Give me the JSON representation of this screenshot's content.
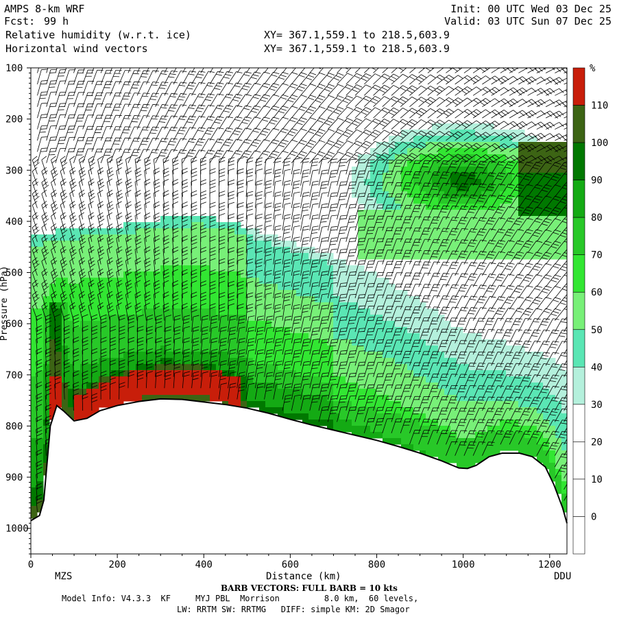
{
  "header": {
    "model": "AMPS 8-km WRF",
    "fcst_label": "Fcst:",
    "fcst_value": "99 h",
    "field1": "Relative humidity (w.r.t. ice)",
    "field2": "Horizontal wind vectors",
    "init": "Init: 00 UTC Wed 03 Dec 25",
    "valid": "Valid: 03 UTC Sun 07 Dec 25",
    "xy1": "XY= 367.1,559.1 to 218.5,603.9",
    "xy2": "XY= 367.1,559.1 to 218.5,603.9"
  },
  "footer": {
    "barb_note": "BARB VECTORS: FULL BARB = 10 kts",
    "model_info": "Model Info: V4.3.3  KF     MYJ PBL  Morrison         8.0 km,  60 levels,",
    "physics": "LW: RRTM SW: RRTMG   DIFF: simple KM: 2D Smagor"
  },
  "chart_data": {
    "type": "heatmap",
    "title": "Relative humidity (w.r.t. ice)",
    "xlabel": "Distance (km)",
    "ylabel": "Pressure (hPa)",
    "xlim": [
      0,
      1240
    ],
    "ylim": [
      100,
      1050
    ],
    "x_ticks": [
      0,
      200,
      400,
      600,
      800,
      1000,
      1200
    ],
    "y_ticks": [
      100,
      200,
      300,
      400,
      500,
      600,
      700,
      800,
      900,
      1000
    ],
    "endpoint_labels": {
      "left": "MZS",
      "right": "DDU"
    },
    "colorbar": {
      "unit": "%",
      "levels": [
        0,
        10,
        20,
        30,
        40,
        50,
        60,
        70,
        80,
        90,
        100,
        110
      ],
      "colors": [
        "#ffffff",
        "#ffffff",
        "#ffffff",
        "#ffffff",
        "#b4f0dc",
        "#5ae6b4",
        "#78f078",
        "#32e632",
        "#28c828",
        "#14aa14",
        "#007800",
        "#3c6414",
        "#c81e0a"
      ]
    },
    "terrain_pressure": [
      [
        0,
        985
      ],
      [
        20,
        975
      ],
      [
        30,
        945
      ],
      [
        45,
        800
      ],
      [
        60,
        760
      ],
      [
        75,
        770
      ],
      [
        100,
        790
      ],
      [
        130,
        785
      ],
      [
        160,
        770
      ],
      [
        200,
        760
      ],
      [
        250,
        752
      ],
      [
        300,
        747
      ],
      [
        350,
        748
      ],
      [
        400,
        753
      ],
      [
        450,
        758
      ],
      [
        500,
        765
      ],
      [
        550,
        775
      ],
      [
        600,
        787
      ],
      [
        650,
        798
      ],
      [
        700,
        808
      ],
      [
        750,
        818
      ],
      [
        800,
        828
      ],
      [
        850,
        840
      ],
      [
        900,
        853
      ],
      [
        950,
        868
      ],
      [
        990,
        882
      ],
      [
        1010,
        883
      ],
      [
        1030,
        877
      ],
      [
        1060,
        860
      ],
      [
        1090,
        853
      ],
      [
        1130,
        853
      ],
      [
        1160,
        860
      ],
      [
        1190,
        880
      ],
      [
        1210,
        915
      ],
      [
        1230,
        960
      ],
      [
        1240,
        990
      ]
    ],
    "rh_features": [
      {
        "desc": "RH 30-50",
        "lower_left_band_top": [
          [
            0,
            425
          ],
          [
            200,
            410
          ],
          [
            400,
            390
          ],
          [
            600,
            440
          ],
          [
            800,
            490
          ],
          [
            1000,
            580
          ],
          [
            1240,
            620
          ]
        ]
      },
      {
        "desc": "RH 110+",
        "core": [
          [
            120,
            760
          ],
          [
            200,
            725
          ],
          [
            300,
            700
          ],
          [
            400,
            705
          ],
          [
            420,
            715
          ]
        ]
      },
      {
        "desc": "RH 80-100 upper",
        "region": [
          [
            900,
            300
          ],
          [
            1240,
            260
          ]
        ]
      }
    ],
    "wind_barbs": "full barb = 10 kts"
  }
}
